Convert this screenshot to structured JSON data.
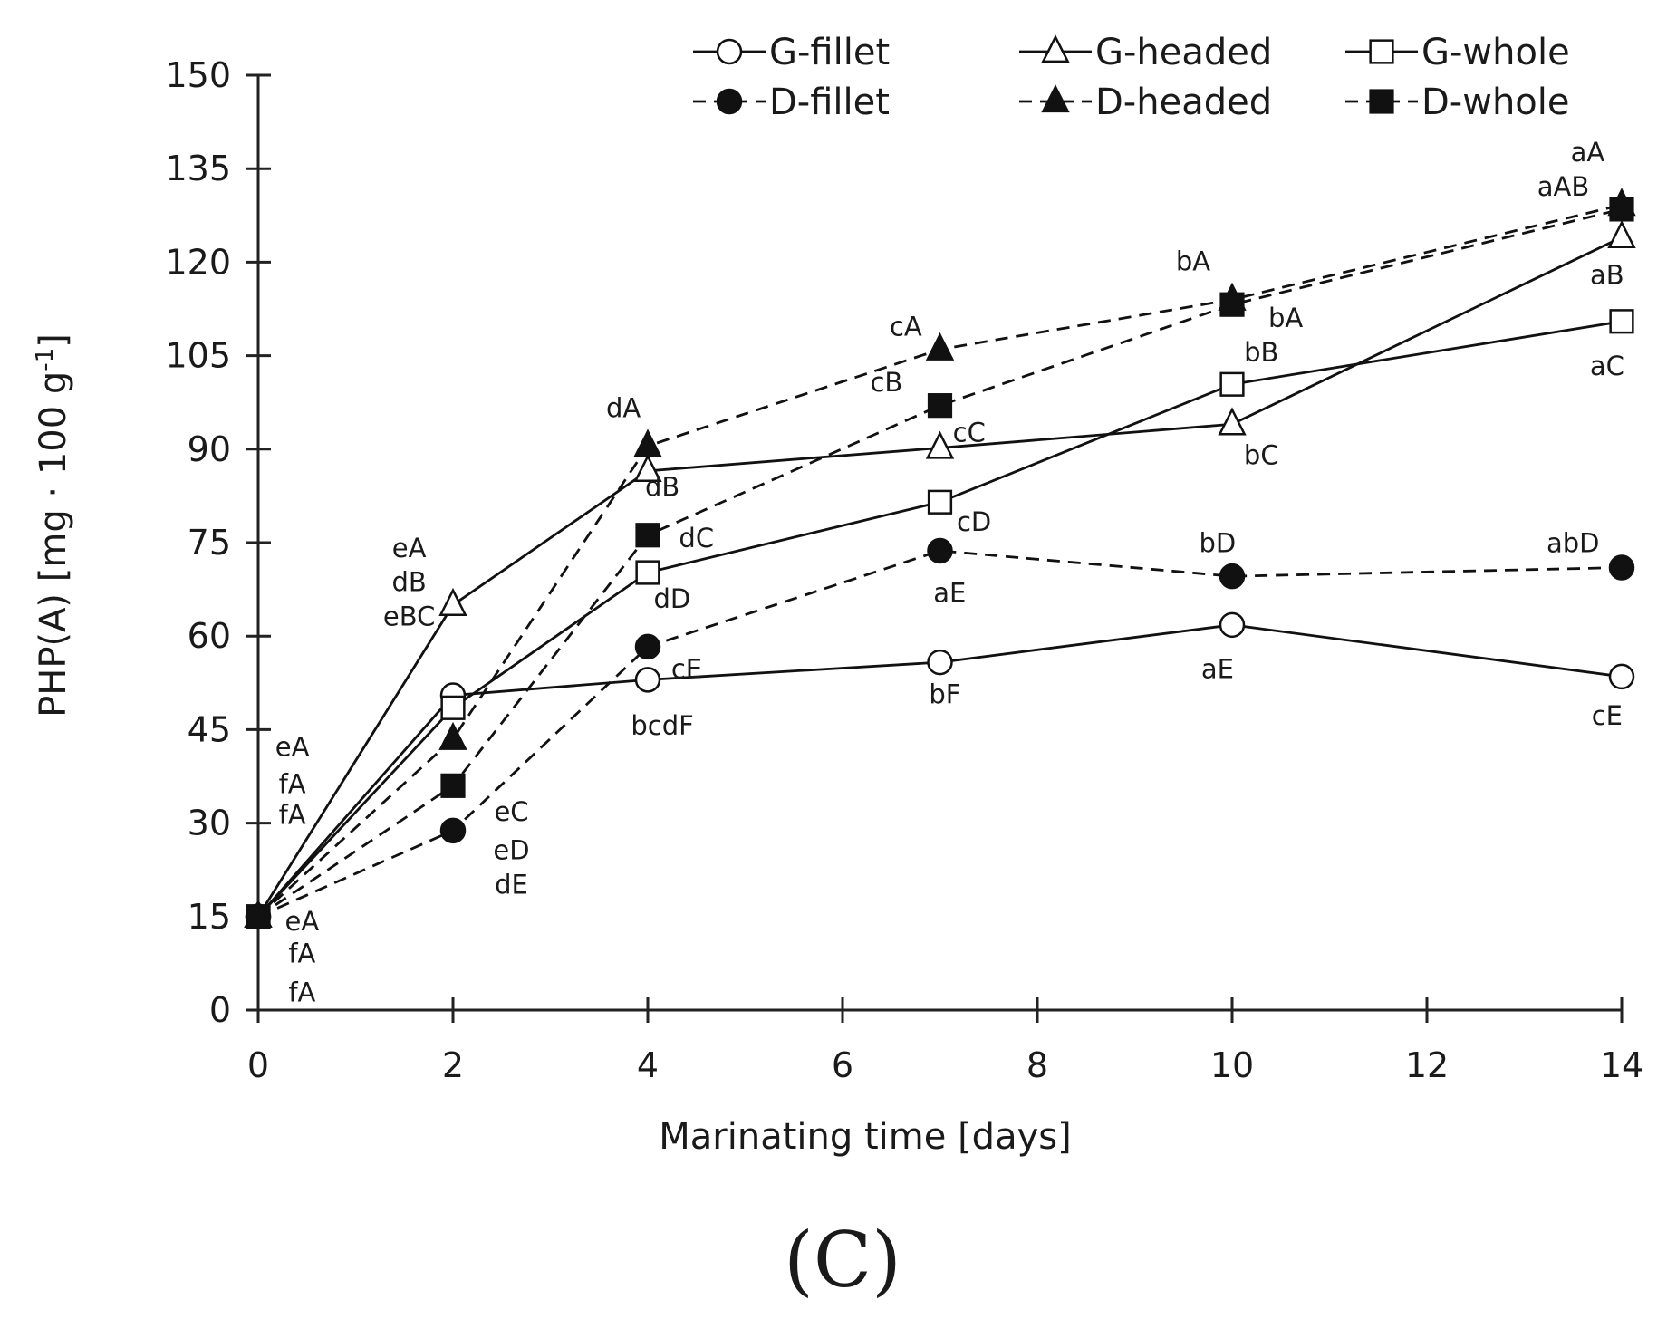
{
  "chart_data": {
    "type": "line",
    "xlabel": "Marinating time [days]",
    "ylabel": "PHP(A) [mg · 100 g",
    "ylabel_sup": "-1",
    "ylabel_close": "]",
    "panel_label": "(C)",
    "xlim": [
      0,
      14
    ],
    "ylim": [
      0,
      150
    ],
    "x_ticks": [
      0,
      2,
      4,
      6,
      8,
      10,
      12,
      14
    ],
    "y_ticks": [
      0,
      15,
      30,
      45,
      60,
      75,
      90,
      105,
      120,
      135,
      150
    ],
    "legend_position": "top-right",
    "series": [
      {
        "name": "G-fillet",
        "x": [
          0,
          2,
          4,
          7,
          10,
          14
        ],
        "values": [
          15,
          50.5,
          53,
          55.8,
          61.8,
          53.5
        ],
        "line": "solid",
        "marker": "circle",
        "fill": "open"
      },
      {
        "name": "G-headed",
        "x": [
          0,
          2,
          4,
          7,
          10,
          14
        ],
        "values": [
          15,
          65,
          86.5,
          90.2,
          94,
          124
        ],
        "line": "solid",
        "marker": "triangle",
        "fill": "open"
      },
      {
        "name": "G-whole",
        "x": [
          0,
          2,
          4,
          7,
          10,
          14
        ],
        "values": [
          15,
          48.5,
          70.2,
          81.5,
          100.4,
          110.5
        ],
        "line": "solid",
        "marker": "square",
        "fill": "open"
      },
      {
        "name": "D-fillet",
        "x": [
          0,
          2,
          4,
          7,
          10,
          14
        ],
        "values": [
          15,
          28.8,
          58.3,
          73.7,
          69.6,
          71
        ],
        "line": "dashed",
        "marker": "circle",
        "fill": "filled"
      },
      {
        "name": "D-headed",
        "x": [
          0,
          2,
          4,
          7,
          10,
          14
        ],
        "values": [
          15,
          43.5,
          90.5,
          106,
          114,
          129.2
        ],
        "line": "dashed",
        "marker": "triangle",
        "fill": "filled"
      },
      {
        "name": "D-whole",
        "x": [
          0,
          2,
          4,
          7,
          10,
          14
        ],
        "values": [
          15,
          36,
          76.2,
          97,
          113.2,
          128.5
        ],
        "line": "dashed",
        "marker": "square",
        "fill": "filled"
      }
    ],
    "annotations": [
      {
        "text": "eA",
        "x": 0.35,
        "y": 40.8
      },
      {
        "text": "fA",
        "x": 0.35,
        "y": 34.8
      },
      {
        "text": "fA",
        "x": 0.35,
        "y": 29.9
      },
      {
        "text": "eA",
        "x": 0.45,
        "y": 12.8
      },
      {
        "text": "fA",
        "x": 0.45,
        "y": 7.6
      },
      {
        "text": "fA",
        "x": 0.45,
        "y": 1.4
      },
      {
        "text": "eA",
        "x": 1.55,
        "y": 72.7
      },
      {
        "text": "dB",
        "x": 1.55,
        "y": 67.2
      },
      {
        "text": "eBC",
        "x": 1.55,
        "y": 61.7
      },
      {
        "text": "eC",
        "x": 2.6,
        "y": 30.4
      },
      {
        "text": "eD",
        "x": 2.6,
        "y": 24.2
      },
      {
        "text": "dE",
        "x": 2.6,
        "y": 18.7
      },
      {
        "text": "dA",
        "x": 3.75,
        "y": 95.1
      },
      {
        "text": "dB",
        "x": 4.15,
        "y": 82.5
      },
      {
        "text": "dC",
        "x": 4.5,
        "y": 74.3
      },
      {
        "text": "dD",
        "x": 4.25,
        "y": 64.5
      },
      {
        "text": "cE",
        "x": 4.4,
        "y": 53.3
      },
      {
        "text": "bcdF",
        "x": 4.15,
        "y": 44.2
      },
      {
        "text": "cA",
        "x": 6.65,
        "y": 108.2
      },
      {
        "text": "cB",
        "x": 6.45,
        "y": 99.3
      },
      {
        "text": "cC",
        "x": 7.3,
        "y": 91.2
      },
      {
        "text": "cD",
        "x": 7.35,
        "y": 76.9
      },
      {
        "text": "aE",
        "x": 7.1,
        "y": 65.5
      },
      {
        "text": "bF",
        "x": 7.05,
        "y": 49.2
      },
      {
        "text": "bA",
        "x": 9.6,
        "y": 118.7
      },
      {
        "text": "bA",
        "x": 10.55,
        "y": 109.6
      },
      {
        "text": "bB",
        "x": 10.3,
        "y": 104.1
      },
      {
        "text": "bC",
        "x": 10.3,
        "y": 87.6
      },
      {
        "text": "bD",
        "x": 9.85,
        "y": 73.5
      },
      {
        "text": "aE",
        "x": 9.85,
        "y": 53.3
      },
      {
        "text": "aA",
        "x": 13.65,
        "y": 136.2
      },
      {
        "text": "aAB",
        "x": 13.4,
        "y": 130.7
      },
      {
        "text": "aB",
        "x": 13.85,
        "y": 116.5
      },
      {
        "text": "aC",
        "x": 13.85,
        "y": 101.9
      },
      {
        "text": "abD",
        "x": 13.5,
        "y": 73.5
      },
      {
        "text": "cE",
        "x": 13.85,
        "y": 45.8
      }
    ]
  }
}
